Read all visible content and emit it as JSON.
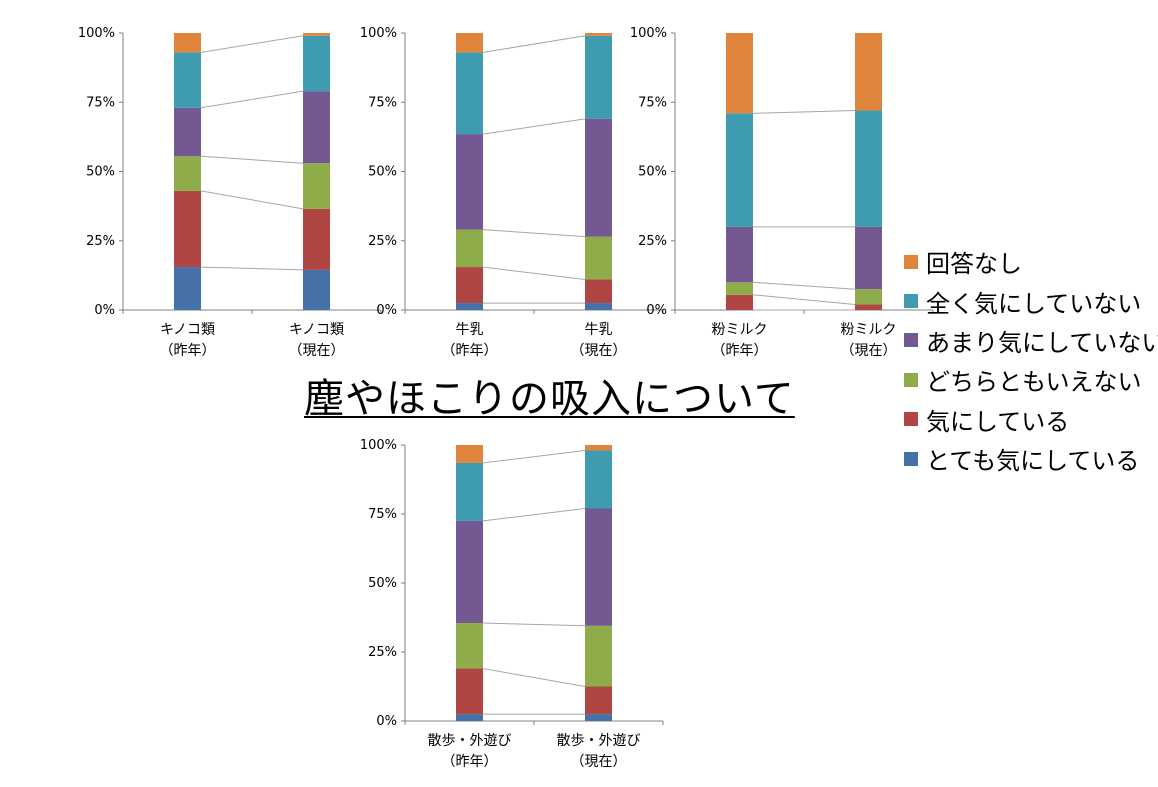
{
  "title": "塵やほこりの吸入について",
  "legend": [
    {
      "label": "回答なし",
      "color": "#e0853c"
    },
    {
      "label": "全く気にしていない",
      "color": "#3e9bb0"
    },
    {
      "label": "あまり気にしていない",
      "color": "#735892"
    },
    {
      "label": "どちらともいえない",
      "color": "#8ead4a"
    },
    {
      "label": "気にしている",
      "color": "#b04643"
    },
    {
      "label": "とても気にしている",
      "color": "#4670a8"
    }
  ],
  "chart_data": [
    {
      "type": "bar",
      "stacked": true,
      "yticks": [
        "0%",
        "25%",
        "50%",
        "75%",
        "100%"
      ],
      "ylim": [
        0,
        100
      ],
      "categories": [
        [
          "キノコ類",
          "（昨年）"
        ],
        [
          "キノコ類",
          "（現在）"
        ]
      ],
      "series": [
        {
          "name": "とても気にしている",
          "values": [
            15.5,
            14.5
          ]
        },
        {
          "name": "気にしている",
          "values": [
            27.5,
            22
          ]
        },
        {
          "name": "どちらともいえない",
          "values": [
            12.5,
            16.5
          ]
        },
        {
          "name": "あまり気にしていない",
          "values": [
            17.5,
            26
          ]
        },
        {
          "name": "全く気にしていない",
          "values": [
            20,
            20
          ]
        },
        {
          "name": "回答なし",
          "values": [
            7,
            1
          ]
        }
      ]
    },
    {
      "type": "bar",
      "stacked": true,
      "yticks": [
        "0%",
        "25%",
        "50%",
        "75%",
        "100%"
      ],
      "ylim": [
        0,
        100
      ],
      "categories": [
        [
          "牛乳",
          "（昨年）"
        ],
        [
          "牛乳",
          "（現在）"
        ]
      ],
      "series": [
        {
          "name": "とても気にしている",
          "values": [
            2.5,
            2.5
          ]
        },
        {
          "name": "気にしている",
          "values": [
            13,
            8.5
          ]
        },
        {
          "name": "どちらともいえない",
          "values": [
            13.5,
            15.5
          ]
        },
        {
          "name": "あまり気にしていない",
          "values": [
            34.5,
            42.5
          ]
        },
        {
          "name": "全く気にしていない",
          "values": [
            29.5,
            30
          ]
        },
        {
          "name": "回答なし",
          "values": [
            7,
            1
          ]
        }
      ]
    },
    {
      "type": "bar",
      "stacked": true,
      "yticks": [
        "0%",
        "25%",
        "50%",
        "75%",
        "100%"
      ],
      "ylim": [
        0,
        100
      ],
      "categories": [
        [
          "粉ミルク",
          "（昨年）"
        ],
        [
          "粉ミルク",
          "（現在）"
        ]
      ],
      "series": [
        {
          "name": "とても気にしている",
          "values": [
            0,
            0
          ]
        },
        {
          "name": "気にしている",
          "values": [
            5.5,
            2
          ]
        },
        {
          "name": "どちらともいえない",
          "values": [
            4.5,
            5.5
          ]
        },
        {
          "name": "あまり気にしていない",
          "values": [
            20,
            22.5
          ]
        },
        {
          "name": "全く気にしていない",
          "values": [
            41,
            42
          ]
        },
        {
          "name": "回答なし",
          "values": [
            29,
            28
          ]
        }
      ]
    },
    {
      "type": "bar",
      "stacked": true,
      "yticks": [
        "0%",
        "25%",
        "50%",
        "75%",
        "100%"
      ],
      "ylim": [
        0,
        100
      ],
      "categories": [
        [
          "散歩・外遊び",
          "（昨年）"
        ],
        [
          "散歩・外遊び",
          "（現在）"
        ]
      ],
      "series": [
        {
          "name": "とても気にしている",
          "values": [
            2.5,
            2.5
          ]
        },
        {
          "name": "気にしている",
          "values": [
            16.5,
            10
          ]
        },
        {
          "name": "どちらともいえない",
          "values": [
            16.5,
            22
          ]
        },
        {
          "name": "あまり気にしていない",
          "values": [
            37,
            42.5
          ]
        },
        {
          "name": "全く気にしていない",
          "values": [
            21,
            21
          ]
        },
        {
          "name": "回答なし",
          "values": [
            6.5,
            2
          ]
        }
      ]
    }
  ]
}
